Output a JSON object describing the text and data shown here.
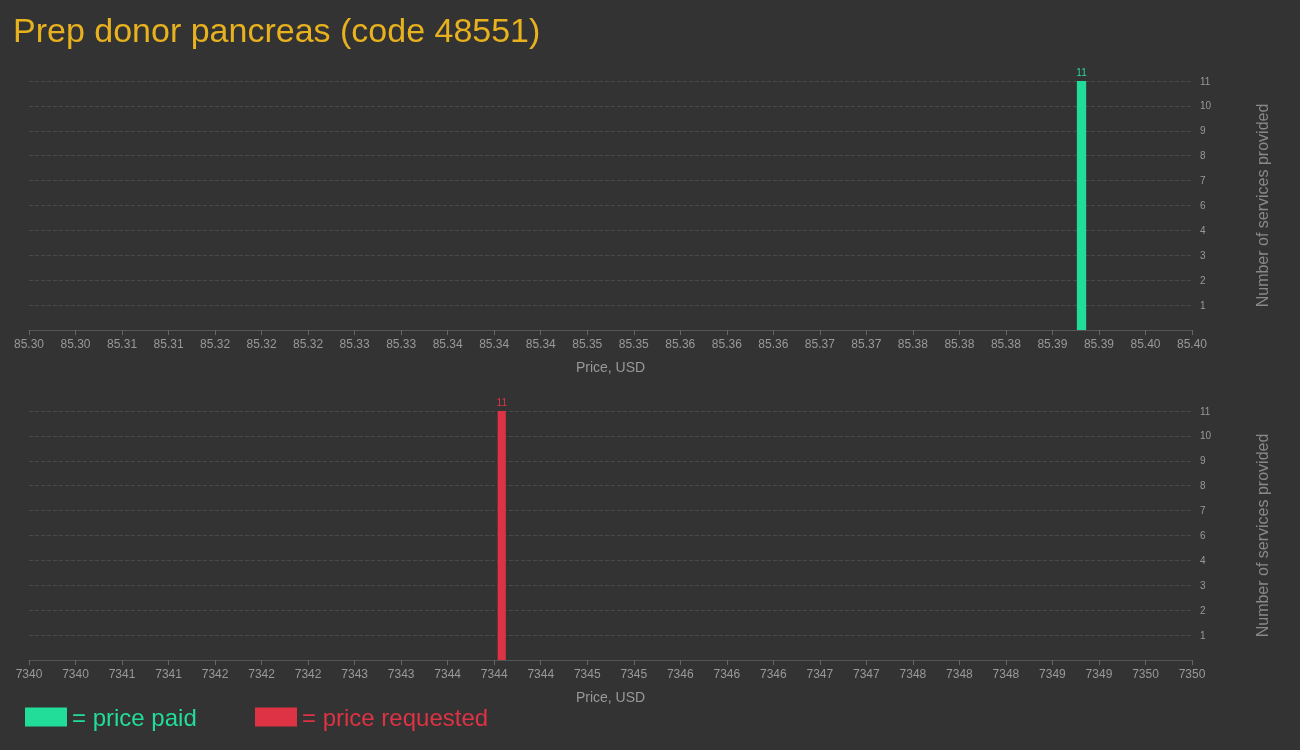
{
  "chart_data": [
    {
      "type": "histogram",
      "title": "Prep donor pancreas (code 48551)",
      "xlabel": "Price, USD",
      "ylabel": "Number of services provided",
      "bins": [
        85.3901,
        85.3909
      ],
      "series": [
        {
          "name": "= price paid",
          "color": "#22dd99",
          "values": [
            11
          ]
        }
      ],
      "xlim": [
        85.3,
        85.4
      ],
      "xticks": [
        {
          "value": 85.3,
          "label": "85.30"
        },
        {
          "value": 85.304,
          "label": "85.30"
        },
        {
          "value": 85.308,
          "label": "85.31"
        },
        {
          "value": 85.312,
          "label": "85.31"
        },
        {
          "value": 85.316,
          "label": "85.32"
        },
        {
          "value": 85.32,
          "label": "85.32"
        },
        {
          "value": 85.324,
          "label": "85.32"
        },
        {
          "value": 85.328,
          "label": "85.33"
        },
        {
          "value": 85.332,
          "label": "85.33"
        },
        {
          "value": 85.336,
          "label": "85.34"
        },
        {
          "value": 85.34,
          "label": "85.34"
        },
        {
          "value": 85.344,
          "label": "85.34"
        },
        {
          "value": 85.348,
          "label": "85.35"
        },
        {
          "value": 85.352,
          "label": "85.35"
        },
        {
          "value": 85.356,
          "label": "85.36"
        },
        {
          "value": 85.36,
          "label": "85.36"
        },
        {
          "value": 85.364,
          "label": "85.36"
        },
        {
          "value": 85.368,
          "label": "85.37"
        },
        {
          "value": 85.372,
          "label": "85.37"
        },
        {
          "value": 85.376,
          "label": "85.38"
        },
        {
          "value": 85.38,
          "label": "85.38"
        },
        {
          "value": 85.384,
          "label": "85.38"
        },
        {
          "value": 85.388,
          "label": "85.39"
        },
        {
          "value": 85.392,
          "label": "85.39"
        },
        {
          "value": 85.396,
          "label": "85.40"
        },
        {
          "value": 85.4,
          "label": "85.40"
        }
      ],
      "ylim": [
        0,
        11
      ],
      "yticks": [
        {
          "value": 1.1,
          "label": "1"
        },
        {
          "value": 2.2,
          "label": "2"
        },
        {
          "value": 3.3,
          "label": "3"
        },
        {
          "value": 4.4,
          "label": "4"
        },
        {
          "value": 5.5,
          "label": "6"
        },
        {
          "value": 6.6,
          "label": "7"
        },
        {
          "value": 7.7,
          "label": "8"
        },
        {
          "value": 8.8,
          "label": "9"
        },
        {
          "value": 9.9,
          "label": "10"
        },
        {
          "value": 11,
          "label": "11"
        }
      ],
      "grid": "y",
      "legend": "bottom left",
      "data_labels": true
    },
    {
      "type": "histogram",
      "xlabel": "Price, USD",
      "ylabel": "Number of services provided",
      "bins": [
        7344.03,
        7344.1
      ],
      "series": [
        {
          "name": "= price requested",
          "color": "#dd3344",
          "values": [
            11
          ]
        }
      ],
      "xlim": [
        7340,
        7350
      ],
      "xticks": [
        7340,
        {
          "value": 7340.4,
          "label": "7340"
        },
        {
          "value": 7340.8,
          "label": "7341"
        },
        {
          "value": 7341.2,
          "label": "7341"
        },
        {
          "value": 7341.6,
          "label": "7342"
        },
        7342,
        {
          "value": 7342.4,
          "label": "7342"
        },
        {
          "value": 7342.8,
          "label": "7343"
        },
        {
          "value": 7343.2,
          "label": "7343"
        },
        {
          "value": 7343.6,
          "label": "7344"
        },
        7344,
        {
          "value": 7344.4,
          "label": "7344"
        },
        {
          "value": 7344.8,
          "label": "7345"
        },
        {
          "value": 7345.2,
          "label": "7345"
        },
        {
          "value": 7345.6,
          "label": "7346"
        },
        7346,
        {
          "value": 7346.4,
          "label": "7346"
        },
        {
          "value": 7346.8,
          "label": "7347"
        },
        {
          "value": 7347.2,
          "label": "7347"
        },
        {
          "value": 7347.6,
          "label": "7348"
        },
        7348,
        {
          "value": 7348.4,
          "label": "7348"
        },
        {
          "value": 7348.8,
          "label": "7349"
        },
        {
          "value": 7349.2,
          "label": "7349"
        },
        {
          "value": 7349.6,
          "label": "7350"
        },
        7350
      ],
      "ylim": [
        0,
        11
      ],
      "yticks": [
        {
          "value": 1.1,
          "label": "1"
        },
        {
          "value": 2.2,
          "label": "2"
        },
        {
          "value": 3.3,
          "label": "3"
        },
        {
          "value": 4.4,
          "label": "4"
        },
        {
          "value": 5.5,
          "label": "6"
        },
        {
          "value": 6.6,
          "label": "7"
        },
        {
          "value": 7.7,
          "label": "8"
        },
        {
          "value": 8.8,
          "label": "9"
        },
        {
          "value": 9.9,
          "label": "10"
        },
        {
          "value": 11,
          "label": "11"
        }
      ],
      "grid": "y",
      "legend": "bottom left",
      "data_labels": true
    }
  ]
}
